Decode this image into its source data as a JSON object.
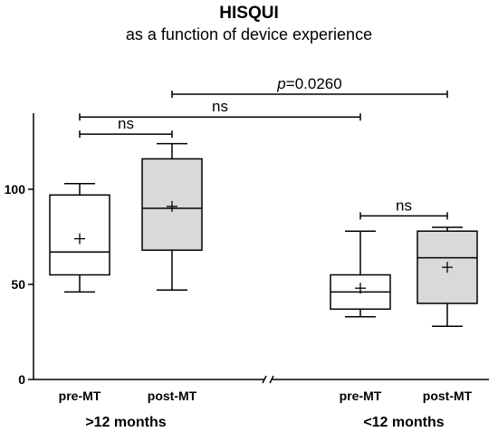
{
  "chart_data": {
    "type": "box",
    "title": "HISQUI",
    "subtitle": "as a function of device experience",
    "ylim": [
      0,
      140
    ],
    "yticks": [
      0,
      50,
      100
    ],
    "grid": false,
    "groups": [
      {
        "label": ">12 months",
        "boxes": [
          0,
          1
        ]
      },
      {
        "label": "<12 months",
        "boxes": [
          2,
          3
        ]
      }
    ],
    "boxes": [
      {
        "label": "pre-MT",
        "group": ">12 months",
        "fill": "#ffffff",
        "whisker_low": 46,
        "q1": 55,
        "median": 67,
        "q3": 97,
        "whisker_high": 103,
        "mean": 74
      },
      {
        "label": "post-MT",
        "group": ">12 months",
        "fill": "#d9d9d9",
        "whisker_low": 47,
        "q1": 68,
        "median": 90,
        "q3": 116,
        "whisker_high": 124,
        "mean": 91
      },
      {
        "label": "pre-MT",
        "group": "<12 months",
        "fill": "#ffffff",
        "whisker_low": 33,
        "q1": 37,
        "median": 46,
        "q3": 55,
        "whisker_high": 78,
        "mean": 48
      },
      {
        "label": "post-MT",
        "group": "<12 months",
        "fill": "#d9d9d9",
        "whisker_low": 28,
        "q1": 40,
        "median": 64,
        "q3": 78,
        "whisker_high": 80,
        "mean": 59
      }
    ],
    "comparisons": [
      {
        "from": 1,
        "to": 3,
        "label_prefix": "p",
        "label_value": "=0.0260",
        "y": 150
      },
      {
        "from": 0,
        "to": 2,
        "label": "ns",
        "y": 138
      },
      {
        "from": 0,
        "to": 1,
        "label": "ns",
        "y": 129
      },
      {
        "from": 2,
        "to": 3,
        "label": "ns",
        "y": 86
      }
    ]
  }
}
